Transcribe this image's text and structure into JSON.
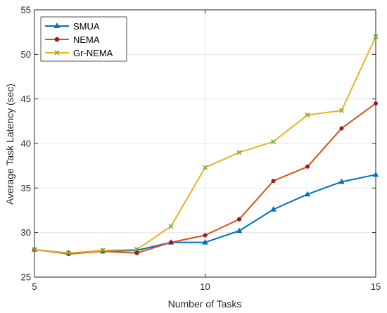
{
  "chart_data": {
    "type": "line",
    "xlabel": "Number of Tasks",
    "ylabel": "Average Task Latency (sec)",
    "xlim": [
      5,
      15
    ],
    "ylim": [
      25,
      55
    ],
    "xticks": [
      5,
      10,
      15
    ],
    "yticks": [
      25,
      30,
      35,
      40,
      45,
      50,
      55
    ],
    "grid": "major",
    "legend_position": "top-left",
    "x": [
      5,
      6,
      7,
      8,
      9,
      10,
      11,
      12,
      13,
      14,
      15
    ],
    "series": [
      {
        "name": "SMUA",
        "color": "#0072BD",
        "marker": "triangle",
        "values": [
          28.1,
          27.7,
          27.9,
          28.0,
          28.9,
          28.9,
          30.2,
          32.6,
          34.3,
          35.7,
          36.5
        ]
      },
      {
        "name": "NEMA",
        "color": "#D95319",
        "marker": "star",
        "values": [
          28.1,
          27.6,
          27.9,
          27.7,
          28.9,
          29.7,
          31.5,
          35.8,
          37.4,
          41.7,
          44.5
        ]
      },
      {
        "name": "Gr-NEMA",
        "color": "#EDB120",
        "marker": "x",
        "values": [
          28.1,
          27.7,
          28.0,
          28.1,
          30.7,
          37.3,
          39.0,
          40.2,
          43.2,
          43.7,
          52.0
        ]
      }
    ]
  }
}
